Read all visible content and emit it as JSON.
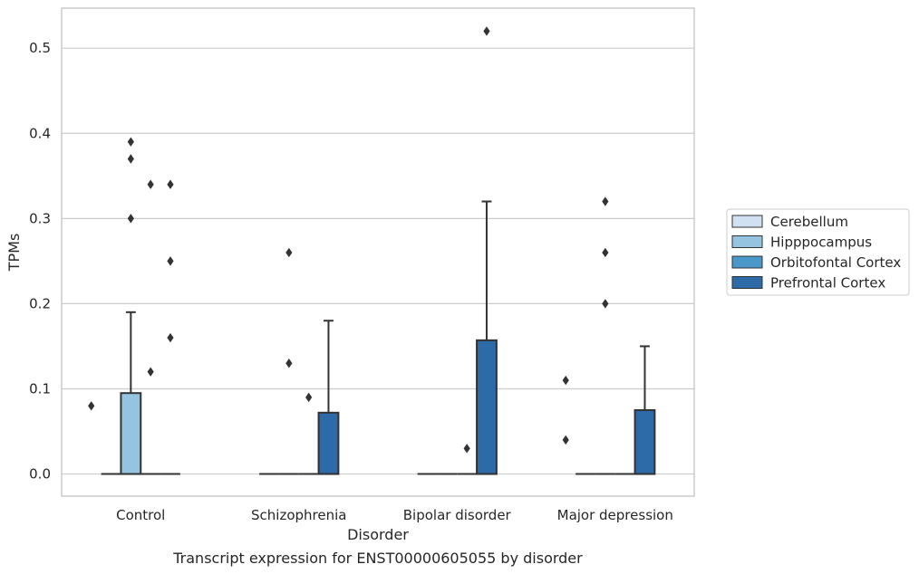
{
  "chart_data": {
    "type": "box",
    "title": "Transcript expression for ENST00000605055 by disorder",
    "xlabel": "Disorder",
    "ylabel": "TPMs",
    "ylim": [
      -0.026,
      0.547
    ],
    "yticks": [
      0.0,
      0.1,
      0.2,
      0.3,
      0.4,
      0.5
    ],
    "ytick_labels": [
      "0.0",
      "0.1",
      "0.2",
      "0.3",
      "0.4",
      "0.5"
    ],
    "grid": "horizontal",
    "legend_position": "right",
    "categories": [
      "Control",
      "Schizophrenia",
      "Bipolar disorder",
      "Major depression"
    ],
    "series": [
      {
        "name": "Cerebellum",
        "color": "#d0e1f2",
        "boxes": [
          {
            "q1": 0,
            "median": 0,
            "q3": 0,
            "whisker_low": 0,
            "whisker_high": 0,
            "outliers": []
          },
          {
            "q1": 0,
            "median": 0,
            "q3": 0,
            "whisker_low": 0,
            "whisker_high": 0,
            "outliers": []
          },
          {
            "q1": 0,
            "median": 0,
            "q3": 0,
            "whisker_low": 0,
            "whisker_high": 0,
            "outliers": []
          },
          {
            "q1": 0,
            "median": 0,
            "q3": 0,
            "whisker_low": 0,
            "whisker_high": 0,
            "outliers": []
          }
        ]
      },
      {
        "name": "Hipppocampus",
        "color": "#94c4df",
        "boxes": [
          {
            "q1": 0,
            "median": 0,
            "q3": 0.095,
            "whisker_low": 0,
            "whisker_high": 0.19,
            "outliers": [
              0.39,
              0.37,
              0.3
            ]
          },
          {
            "q1": 0,
            "median": 0,
            "q3": 0,
            "whisker_low": 0,
            "whisker_high": 0,
            "outliers": [
              0.26,
              0.13
            ]
          },
          {
            "q1": 0,
            "median": 0,
            "q3": 0,
            "whisker_low": 0,
            "whisker_high": 0,
            "outliers": []
          },
          {
            "q1": 0,
            "median": 0,
            "q3": 0,
            "whisker_low": 0,
            "whisker_high": 0,
            "outliers": [
              0.32,
              0.26,
              0.2
            ]
          }
        ]
      },
      {
        "name": "Orbitofontal Cortex",
        "color": "#4a98c9",
        "boxes": [
          {
            "q1": 0,
            "median": 0,
            "q3": 0,
            "whisker_low": 0,
            "whisker_high": 0,
            "outliers": [
              0.34,
              0.12
            ]
          },
          {
            "q1": 0,
            "median": 0,
            "q3": 0,
            "whisker_low": 0,
            "whisker_high": 0,
            "outliers": [
              0.09
            ]
          },
          {
            "q1": 0,
            "median": 0,
            "q3": 0,
            "whisker_low": 0,
            "whisker_high": 0,
            "outliers": [
              0.03
            ]
          },
          {
            "q1": 0,
            "median": 0,
            "q3": 0,
            "whisker_low": 0,
            "whisker_high": 0,
            "outliers": []
          }
        ]
      },
      {
        "name": "Prefrontal Cortex",
        "color": "#2c6aa8",
        "boxes": [
          {
            "q1": 0,
            "median": 0,
            "q3": 0,
            "whisker_low": 0,
            "whisker_high": 0,
            "outliers": [
              0.34,
              0.25,
              0.16
            ]
          },
          {
            "q1": 0,
            "median": 0,
            "q3": 0.072,
            "whisker_low": 0,
            "whisker_high": 0.18,
            "outliers": []
          },
          {
            "q1": 0,
            "median": 0,
            "q3": 0.157,
            "whisker_low": 0,
            "whisker_high": 0.32,
            "outliers": [
              0.52
            ]
          },
          {
            "q1": 0,
            "median": 0,
            "q3": 0.075,
            "whisker_low": 0,
            "whisker_high": 0.15,
            "outliers": []
          }
        ]
      }
    ],
    "extra_outliers": [
      {
        "category": "Control",
        "value": 0.08,
        "position": "left"
      },
      {
        "category": "Major depression",
        "value": 0.11,
        "position": "left"
      },
      {
        "category": "Major depression",
        "value": 0.04,
        "position": "left"
      }
    ]
  }
}
